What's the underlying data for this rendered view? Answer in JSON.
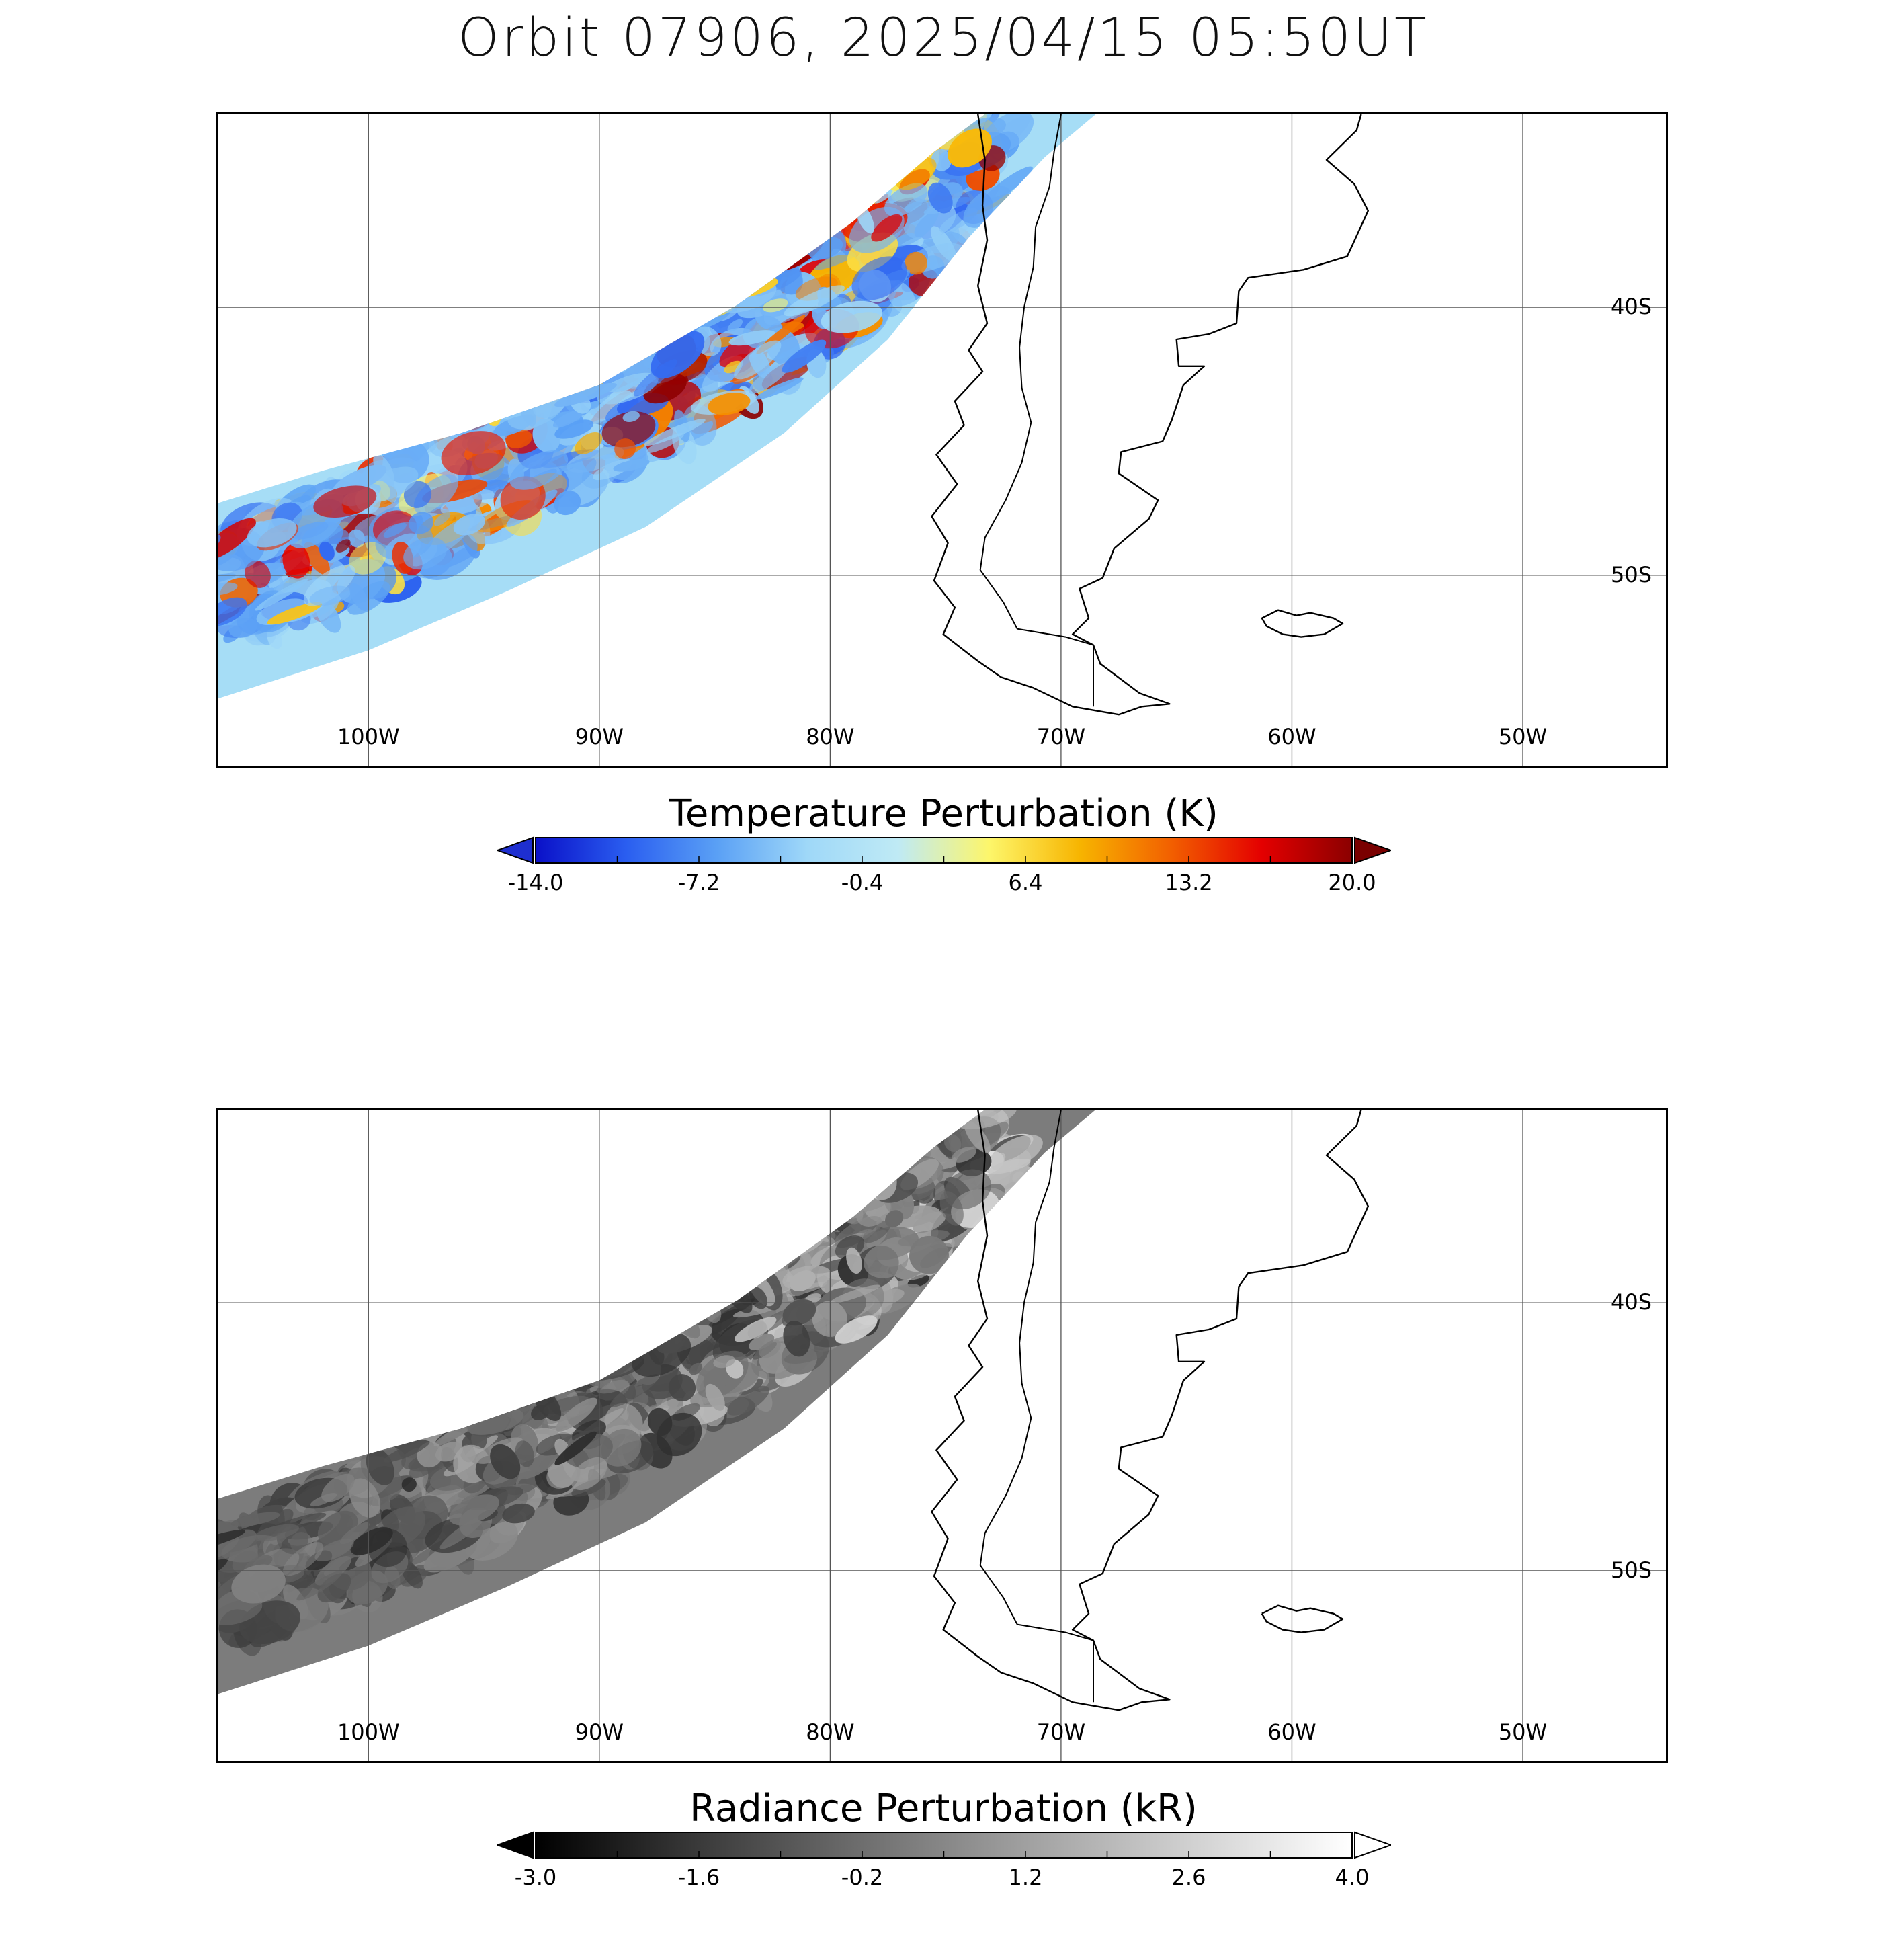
{
  "title": "Orbit 07906, 2025/04/15 05:50UT",
  "map": {
    "projection": "plate-carree",
    "lon_range": [
      -106.5,
      -43.8
    ],
    "lat_range": [
      -32.8,
      -57.1
    ],
    "lon_ticks": [
      {
        "value": -100,
        "label": "100W"
      },
      {
        "value": -90,
        "label": "90W"
      },
      {
        "value": -80,
        "label": "80W"
      },
      {
        "value": -70,
        "label": "70W"
      },
      {
        "value": -60,
        "label": "60W"
      },
      {
        "value": -50,
        "label": "50W"
      }
    ],
    "lat_ticks": [
      {
        "value": -40,
        "label": "40S"
      },
      {
        "value": -50,
        "label": "50S"
      }
    ],
    "grid": true,
    "coastline_color": "#000000"
  },
  "panels": [
    {
      "name": "temperature",
      "colorbar_title": "Temperature Perturbation (K)",
      "colorbar_ticks": [
        "-14.0",
        "-7.2",
        "-0.4",
        "6.4",
        "13.2",
        "20.0"
      ],
      "range": [
        -14.0,
        20.0
      ],
      "colors": [
        "#0a10c8",
        "#2a5ef0",
        "#5aa0f5",
        "#9fd8f8",
        "#bfeaf5",
        "#fdf66a",
        "#f7b400",
        "#f26000",
        "#e40000",
        "#8b0000"
      ],
      "under_color": "#1e2fd0",
      "over_color": "#7a0000"
    },
    {
      "name": "radiance",
      "colorbar_title": "Radiance Perturbation (kR)",
      "colorbar_ticks": [
        "-3.0",
        "-1.6",
        "-0.2",
        "1.2",
        "2.6",
        "4.0"
      ],
      "range": [
        -3.0,
        4.0
      ],
      "colors": [
        "#000000",
        "#3a3a3a",
        "#6e6e6e",
        "#a0a0a0",
        "#d0d0d0",
        "#ffffff"
      ],
      "under_color": "#000000",
      "over_color": "#ffffff"
    }
  ]
}
